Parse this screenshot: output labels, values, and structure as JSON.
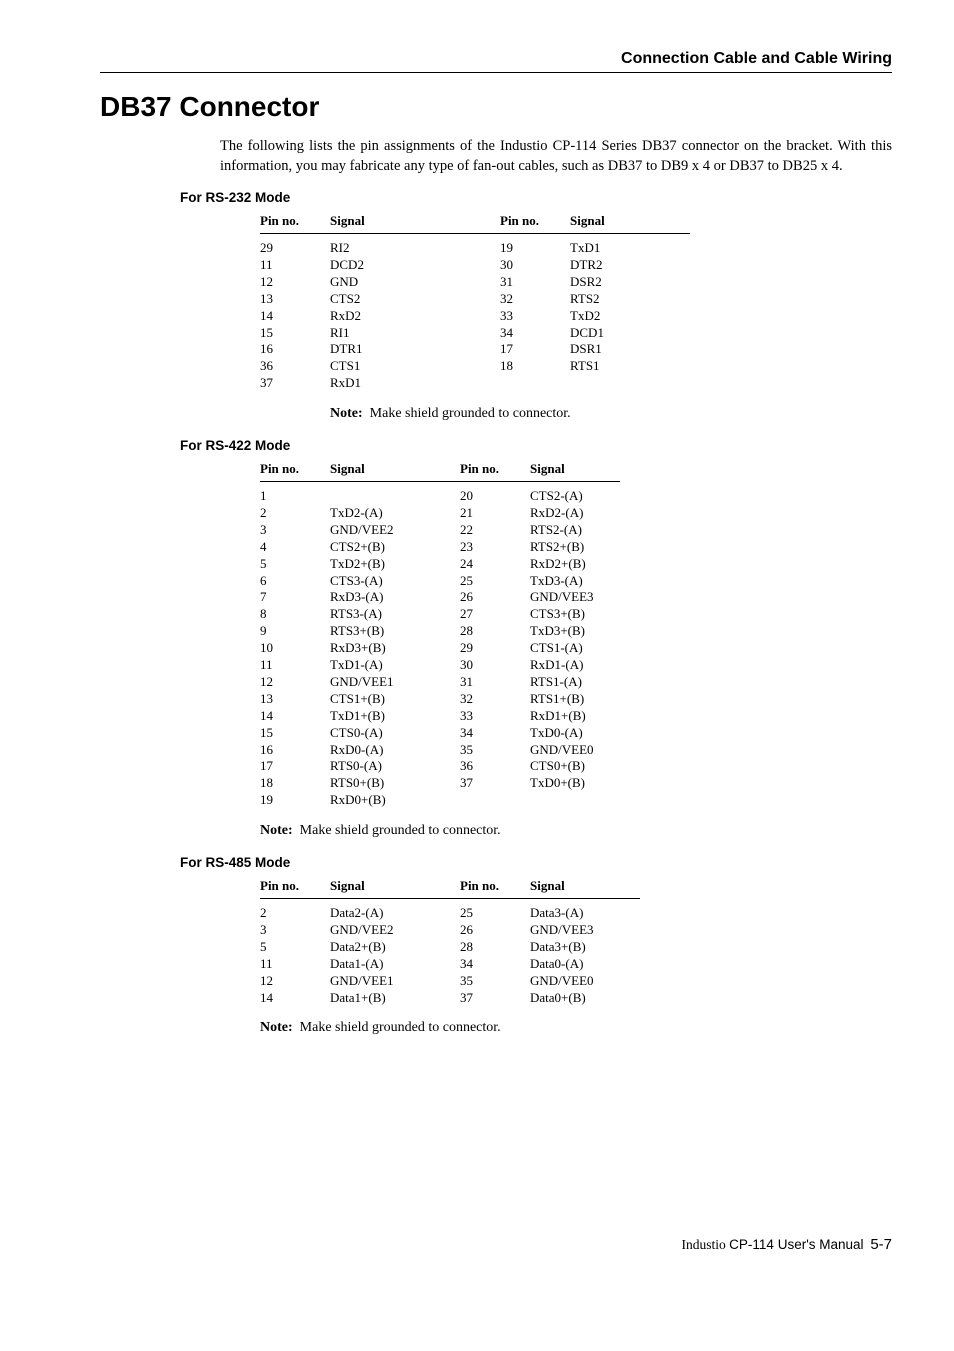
{
  "header": {
    "title": "Connection Cable and Cable Wiring"
  },
  "main_heading": "DB37 Connector",
  "intro": "The following lists the pin assignments of the Industio CP-114 Series DB37 connector on the bracket. With this information, you may fabricate any type of fan-out cables, such as DB37 to DB9 x 4 or DB37 to DB25 x 4.",
  "rs232": {
    "heading": "For RS-232 Mode",
    "cols": [
      "Pin no.",
      "Signal",
      "Pin no.",
      "Signal"
    ],
    "rows": [
      [
        "29",
        "RI2",
        "19",
        "TxD1"
      ],
      [
        "11",
        "DCD2",
        "30",
        "DTR2"
      ],
      [
        "12",
        "GND",
        "31",
        "DSR2"
      ],
      [
        "13",
        "CTS2",
        "32",
        "RTS2"
      ],
      [
        "14",
        "RxD2",
        "33",
        "TxD2"
      ],
      [
        "15",
        "RI1",
        "34",
        "DCD1"
      ],
      [
        "16",
        "DTR1",
        "17",
        "DSR1"
      ],
      [
        "36",
        "CTS1",
        "18",
        "RTS1"
      ],
      [
        "37",
        "RxD1",
        "",
        ""
      ]
    ]
  },
  "rs422": {
    "heading": "For RS-422 Mode",
    "cols": [
      "Pin no.",
      "Signal",
      "Pin no.",
      "Signal"
    ],
    "rows": [
      [
        "1",
        "",
        "20",
        "CTS2-(A)"
      ],
      [
        "2",
        "TxD2-(A)",
        "21",
        "RxD2-(A)"
      ],
      [
        "3",
        "GND/VEE2",
        "22",
        "RTS2-(A)"
      ],
      [
        "4",
        "CTS2+(B)",
        "23",
        "RTS2+(B)"
      ],
      [
        "5",
        "TxD2+(B)",
        "24",
        "RxD2+(B)"
      ],
      [
        "6",
        "CTS3-(A)",
        "25",
        "TxD3-(A)"
      ],
      [
        "7",
        "RxD3-(A)",
        "26",
        "GND/VEE3"
      ],
      [
        "8",
        "RTS3-(A)",
        "27",
        "CTS3+(B)"
      ],
      [
        "9",
        "RTS3+(B)",
        "28",
        "TxD3+(B)"
      ],
      [
        "10",
        "RxD3+(B)",
        "29",
        "CTS1-(A)"
      ],
      [
        "11",
        "TxD1-(A)",
        "30",
        "RxD1-(A)"
      ],
      [
        "12",
        "GND/VEE1",
        "31",
        "RTS1-(A)"
      ],
      [
        "13",
        "CTS1+(B)",
        "32",
        "RTS1+(B)"
      ],
      [
        "14",
        "TxD1+(B)",
        "33",
        "RxD1+(B)"
      ],
      [
        "15",
        "CTS0-(A)",
        "34",
        "TxD0-(A)"
      ],
      [
        "16",
        "RxD0-(A)",
        "35",
        "GND/VEE0"
      ],
      [
        "17",
        "RTS0-(A)",
        "36",
        "CTS0+(B)"
      ],
      [
        "18",
        "RTS0+(B)",
        "37",
        "TxD0+(B)"
      ],
      [
        "19",
        "RxD0+(B)",
        "",
        ""
      ]
    ]
  },
  "rs485": {
    "heading": "For RS-485 Mode",
    "cols": [
      "Pin no.",
      "Signal",
      "Pin no.",
      "Signal"
    ],
    "rows": [
      [
        "2",
        "Data2-(A)",
        "25",
        "Data3-(A)"
      ],
      [
        "3",
        "GND/VEE2",
        "26",
        "GND/VEE3"
      ],
      [
        "5",
        "Data2+(B)",
        "28",
        "Data3+(B)"
      ],
      [
        "11",
        "Data1-(A)",
        "34",
        "Data0-(A)"
      ],
      [
        "12",
        "GND/VEE1",
        "35",
        "GND/VEE0"
      ],
      [
        "14",
        "Data1+(B)",
        "37",
        "Data0+(B)"
      ]
    ]
  },
  "note_label": "Note:",
  "note_text": "Make shield grounded to connector.",
  "footer": {
    "prefix": "Industio ",
    "product": "CP-114 User's Manual",
    "page": "5-7"
  }
}
